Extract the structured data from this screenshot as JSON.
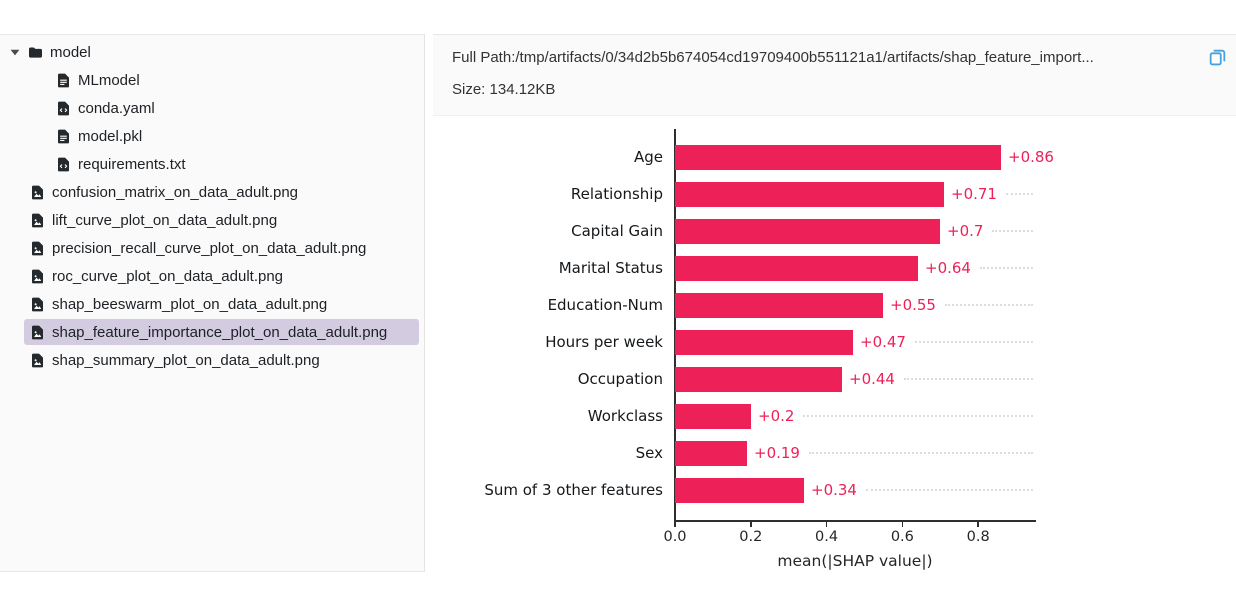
{
  "colors": {
    "bar": "#ed2058",
    "selected_row_bg": "#d3cce1",
    "copy_icon": "#45a2dc",
    "sidebar_bg": "#fafafa"
  },
  "sidebar": {
    "tree": [
      {
        "label": "model",
        "type": "folder",
        "level": 0,
        "expanded": true
      },
      {
        "label": "MLmodel",
        "type": "doc",
        "level": 1
      },
      {
        "label": "conda.yaml",
        "type": "code",
        "level": 1
      },
      {
        "label": "model.pkl",
        "type": "doc",
        "level": 1
      },
      {
        "label": "requirements.txt",
        "type": "code",
        "level": 1
      },
      {
        "label": "confusion_matrix_on_data_adult.png",
        "type": "image",
        "level": 0
      },
      {
        "label": "lift_curve_plot_on_data_adult.png",
        "type": "image",
        "level": 0
      },
      {
        "label": "precision_recall_curve_plot_on_data_adult.png",
        "type": "image",
        "level": 0
      },
      {
        "label": "roc_curve_plot_on_data_adult.png",
        "type": "image",
        "level": 0
      },
      {
        "label": "shap_beeswarm_plot_on_data_adult.png",
        "type": "image",
        "level": 0
      },
      {
        "label": "shap_feature_importance_plot_on_data_adult.png",
        "type": "image",
        "level": 0,
        "selected": true
      },
      {
        "label": "shap_summary_plot_on_data_adult.png",
        "type": "image",
        "level": 0
      }
    ]
  },
  "header": {
    "full_path": "Full Path:/tmp/artifacts/0/34d2b5b674054cd19709400b551121a1/artifacts/shap_feature_import...",
    "size": "Size: 134.12KB"
  },
  "chart_data": {
    "type": "bar",
    "orientation": "horizontal",
    "title": "",
    "categories": [
      "Age",
      "Relationship",
      "Capital Gain",
      "Marital Status",
      "Education-Num",
      "Hours per week",
      "Occupation",
      "Workclass",
      "Sex",
      "Sum of 3 other features"
    ],
    "values": [
      0.86,
      0.71,
      0.7,
      0.64,
      0.55,
      0.47,
      0.44,
      0.2,
      0.19,
      0.34
    ],
    "value_labels": [
      "+0.86",
      "+0.71",
      "+0.7",
      "+0.64",
      "+0.55",
      "+0.47",
      "+0.44",
      "+0.2",
      "+0.19",
      "+0.34"
    ],
    "xlabel": "mean(|SHAP value|)",
    "ylabel": "",
    "x_ticks": [
      "0.0",
      "0.2",
      "0.4",
      "0.6",
      "0.8"
    ],
    "xlim": [
      0,
      0.95
    ],
    "bar_color": "#ed2058",
    "grid": false,
    "legend": false
  }
}
